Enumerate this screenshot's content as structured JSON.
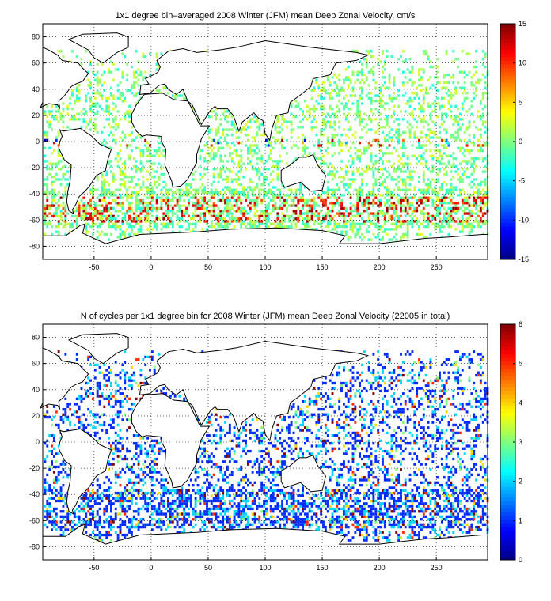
{
  "chart_data": [
    {
      "type": "heatmap",
      "title": "1x1 degree bin–averaged 2008 Winter (JFM) mean Deep Zonal Velocity, cm/s",
      "xlim": [
        -95,
        295
      ],
      "ylim": [
        -90,
        90
      ],
      "x_ticks": [
        -50,
        0,
        50,
        100,
        150,
        200,
        250
      ],
      "y_ticks": [
        80,
        60,
        40,
        20,
        0,
        -20,
        -40,
        -60,
        -80
      ],
      "grid": true,
      "colorbar": {
        "position": "right",
        "min": -15,
        "max": 15,
        "ticks": [
          15,
          10,
          5,
          0,
          -5,
          -10,
          -15
        ],
        "colormap": "jet"
      },
      "note_values": "Scattered 1x1 degree ocean bins; most values near 0 (green/cyan), strong positive (red) bands near 40-60S Southern Ocean and along equator"
    },
    {
      "type": "heatmap",
      "title": "N of cycles per 1x1 degree bin for 2008 Winter (JFM) mean Deep Zonal Velocity (22005 in total)",
      "xlim": [
        -95,
        295
      ],
      "ylim": [
        -90,
        90
      ],
      "x_ticks": [
        -50,
        0,
        50,
        100,
        150,
        200,
        250
      ],
      "y_ticks": [
        80,
        60,
        40,
        20,
        0,
        -20,
        -40,
        -60,
        -80
      ],
      "grid": true,
      "colorbar": {
        "position": "right",
        "min": 0,
        "max": 6,
        "ticks": [
          6,
          5,
          4,
          3,
          2,
          1,
          0
        ],
        "colormap": "jet"
      },
      "note_values": "Most bins contain 1-2 cycles (blue), scattered bins with 4-6 cycles (orange/red) in Pacific and Atlantic"
    }
  ]
}
